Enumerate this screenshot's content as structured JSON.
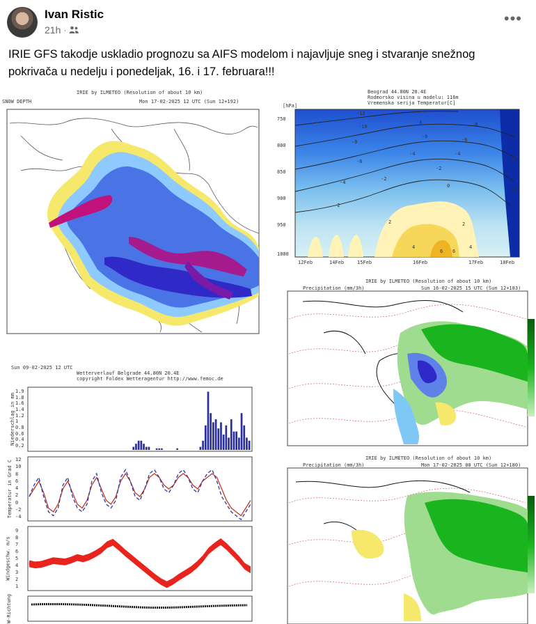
{
  "post": {
    "author": "Ivan Ristic",
    "time": "21h",
    "separator": "·",
    "audience_icon": "friends-icon",
    "more_label": "•••",
    "text": "IRIE GFS takodje uskladio prognozu sa AIFS modelom i najavljuje sneg i stvaranje snežnog pokrivača u nedelju i ponedeljak, 16. i 17. februara!!!"
  },
  "snow_map": {
    "title": "IRIE by ILMETEO (Resolution of about 10 km)",
    "left_label": "SNOW DEPTH",
    "right_label": "Mon 17-02-2025 12 UTC (Sun 12+192)"
  },
  "cross_section": {
    "title_line1": "Beograd 44.80N 20.4E",
    "title_line2": "Rodmorsko visina u modelu: 116m",
    "title_line3": "Vremenska serija Temperatur[C]",
    "y_label": "[hPa]",
    "y_ticks": [
      "750",
      "800",
      "850",
      "900",
      "950",
      "1000"
    ],
    "x_ticks": [
      "12Feb",
      "14Feb",
      "15Feb",
      "16Feb",
      "17Feb",
      "18Feb"
    ],
    "contour_labels": [
      "-12",
      "-10",
      "-8",
      "-8",
      "-8",
      "-6",
      "-6",
      "-6",
      "-4",
      "-4",
      "-4",
      "-2",
      "-2",
      "-2",
      "0",
      "2",
      "2",
      "4",
      "4",
      "6",
      "6",
      "-1",
      "-7"
    ]
  },
  "precip_map_1": {
    "title": "IRIE by ILMETEO (Resolution of about 10 km)",
    "left_label": "Precipitation (mm/3h)",
    "right_label": "Sun 16-02-2025 15 UTC (Sun 12+183)"
  },
  "precip_map_2": {
    "title": "IRIE by ILMETEO (Resolution of about 10 km)",
    "left_label": "Precipitation (mm/3h)",
    "right_label": "Mon 17-02-2025 00 UTC (Sun 12+180)"
  },
  "meteogram": {
    "date": "Sun 09-02-2025 12 UTC",
    "title_line1": "Wetterverlauf Belgrade   44.80N 20.4E",
    "title_line2": "copyright Foldex Wetteragentur http://www.femoc.de",
    "panel_labels": [
      "Niederschlag in mm",
      "Temperatur in Grad C",
      "Windgeschw. m/s",
      "W-Richtung"
    ],
    "precip_ticks": [
      "1.9",
      "1.8",
      "1.6",
      "1.4",
      "1.2",
      "1",
      "0.8",
      "0.6",
      "0.4",
      "0.2"
    ],
    "temp_ticks": [
      "12",
      "10",
      "8",
      "6",
      "4",
      "2",
      "0",
      "-2",
      "-4"
    ],
    "wind_ticks": [
      "9",
      "8",
      "7",
      "6",
      "5",
      "4",
      "3",
      "2",
      "1"
    ]
  },
  "chart_data": [
    {
      "type": "bar",
      "title": "Wetterverlauf Belgrade 44.80N 20.4E",
      "ylabel": "Niederschlag in mm",
      "ylim": [
        0,
        2
      ],
      "values": [
        0,
        0,
        0,
        0,
        0,
        0,
        0,
        0,
        0,
        0,
        0,
        0,
        0,
        0,
        0,
        0,
        0,
        0,
        0,
        0,
        0,
        0,
        0,
        0,
        0,
        0,
        0,
        0,
        0,
        0,
        0,
        0,
        0,
        0,
        0,
        0,
        0,
        0,
        0,
        0,
        0.1,
        0.2,
        0.3,
        0.3,
        0.2,
        0.1,
        0.1,
        0,
        0,
        0.05,
        0.05,
        0.05,
        0,
        0,
        0,
        0,
        0,
        0.05,
        0,
        0,
        0,
        0,
        0,
        0,
        0,
        0,
        0.1,
        0.3,
        0.8,
        1.9,
        1.2,
        0.9,
        1.0,
        0.7,
        0.9,
        0.5,
        0.8,
        0.4,
        1.0,
        0.6,
        0.6,
        0.4,
        1.2,
        0.8,
        0.4,
        0.3
      ]
    },
    {
      "type": "line",
      "ylabel": "Temperatur in Grad C",
      "ylim": [
        -4,
        12
      ],
      "series": [
        {
          "color": "#c0392b",
          "values": [
            2,
            4,
            6,
            3,
            -1,
            -2,
            0,
            4,
            6,
            3,
            0,
            -1,
            1,
            5,
            7,
            4,
            1,
            0,
            2,
            6,
            8,
            6,
            3,
            2,
            4,
            7,
            8,
            7,
            5,
            4,
            5,
            7,
            8,
            7,
            5,
            4,
            6,
            7,
            8,
            7,
            4,
            1,
            -1,
            -2,
            -3,
            -1,
            1
          ]
        },
        {
          "color": "#2b3a9c",
          "values": [
            2,
            5,
            7,
            2,
            -2,
            -3,
            -1,
            5,
            7,
            2,
            -1,
            -2,
            0,
            6,
            8,
            3,
            0,
            -1,
            1,
            7,
            9,
            6,
            2,
            1,
            4,
            8,
            9,
            7,
            4,
            3,
            5,
            8,
            9,
            7,
            4,
            3,
            6,
            8,
            9,
            6,
            2,
            0,
            -2,
            -3,
            -4,
            -2,
            0
          ]
        }
      ]
    },
    {
      "type": "area",
      "ylabel": "Windgeschw. m/s",
      "ylim": [
        0,
        10
      ],
      "values": [
        4.2,
        4.0,
        4.1,
        4.4,
        4.7,
        4.6,
        4.5,
        4.8,
        5.2,
        5.0,
        5.3,
        5.8,
        6.4,
        7.3,
        7.7,
        6.9,
        6.0,
        5.2,
        4.4,
        3.6,
        2.8,
        2.0,
        1.3,
        0.8,
        1.3,
        2.0,
        2.6,
        3.2,
        4.0,
        5.0,
        6.3,
        7.1,
        7.8,
        7.0,
        6.0,
        5.0,
        3.8,
        3.2
      ]
    }
  ],
  "colors": {
    "snow_deep": "#c0127a",
    "snow_mid": "#2f29c8",
    "snow_light": "#5aa9ff",
    "fringe": "#f5e86a",
    "precip_green": "#18b41c",
    "precip_light": "#7ed27a",
    "wind_fill": "#e8241c"
  }
}
